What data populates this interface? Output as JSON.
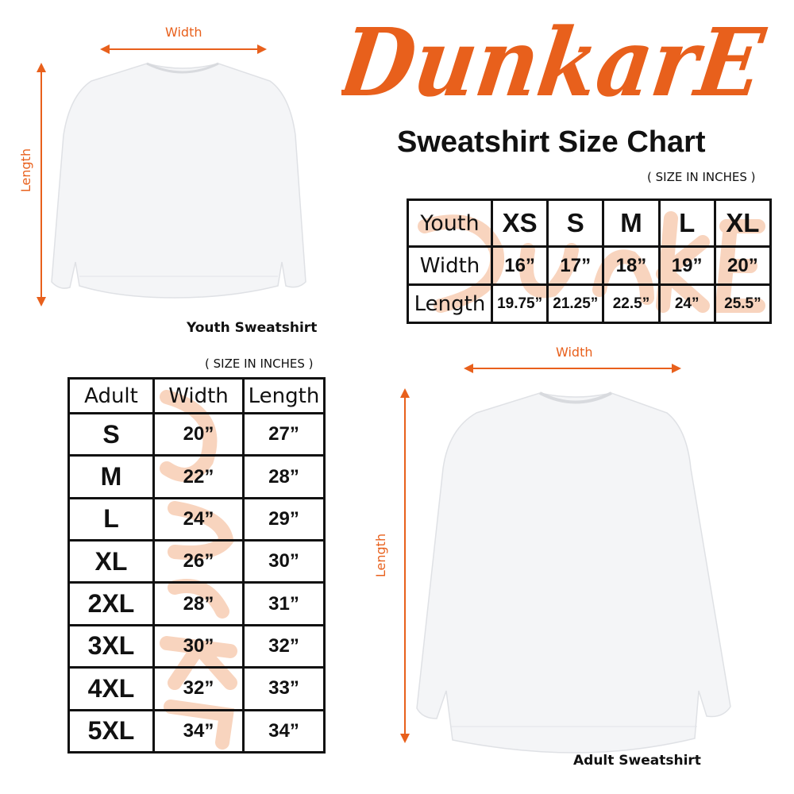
{
  "brand": {
    "logo_text": "DunkarE",
    "color": "#e8601c"
  },
  "title": "Sweatshirt Size Chart",
  "youth": {
    "note": "( SIZE IN INCHES )",
    "caption": "Youth Sweatshirt",
    "width_label": "Width",
    "length_label": "Length",
    "header": [
      "Youth",
      "XS",
      "S",
      "M",
      "L",
      "XL"
    ],
    "rows": [
      [
        "Width",
        "16”",
        "17”",
        "18”",
        "19”",
        "20”"
      ],
      [
        "Length",
        "19.75”",
        "21.25”",
        "22.5”",
        "24”",
        "25.5”"
      ]
    ]
  },
  "adult": {
    "note": "( SIZE IN INCHES )",
    "caption": "Adult Sweatshirt",
    "width_label": "Width",
    "length_label": "Length",
    "header": [
      "Adult",
      "Width",
      "Length"
    ],
    "rows": [
      [
        "S",
        "20”",
        "27”"
      ],
      [
        "M",
        "22”",
        "28”"
      ],
      [
        "L",
        "24”",
        "29”"
      ],
      [
        "XL",
        "26”",
        "30”"
      ],
      [
        "2XL",
        "28”",
        "31”"
      ],
      [
        "3XL",
        "30”",
        "32”"
      ],
      [
        "4XL",
        "32”",
        "33”"
      ],
      [
        "5XL",
        "34”",
        "34”"
      ]
    ]
  }
}
